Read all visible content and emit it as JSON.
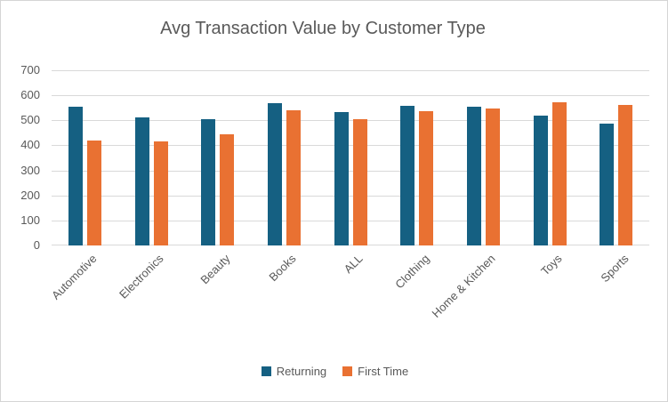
{
  "chart_data": {
    "type": "bar",
    "title": "Avg Transaction Value by Customer Type",
    "categories": [
      "Automotive",
      "Electronics",
      "Beauty",
      "Books",
      "ALL",
      "Clothing",
      "Home & Kitchen",
      "Toys",
      "Sports"
    ],
    "series": [
      {
        "name": "Returning",
        "color": "#156082",
        "values": [
          555,
          512,
          505,
          570,
          533,
          558,
          553,
          520,
          487
        ]
      },
      {
        "name": "First Time",
        "color": "#E97132",
        "values": [
          420,
          415,
          443,
          540,
          505,
          537,
          548,
          572,
          560
        ]
      }
    ],
    "xlabel": "",
    "ylabel": "",
    "ylim": [
      0,
      700
    ],
    "yticks": [
      0,
      100,
      200,
      300,
      400,
      500,
      600,
      700
    ],
    "grid": true,
    "legend_position": "bottom",
    "colors": {
      "text": "#595959",
      "gridline": "#D9D9D9",
      "background": "#FFFFFF",
      "border": "#D5D5D5"
    }
  }
}
